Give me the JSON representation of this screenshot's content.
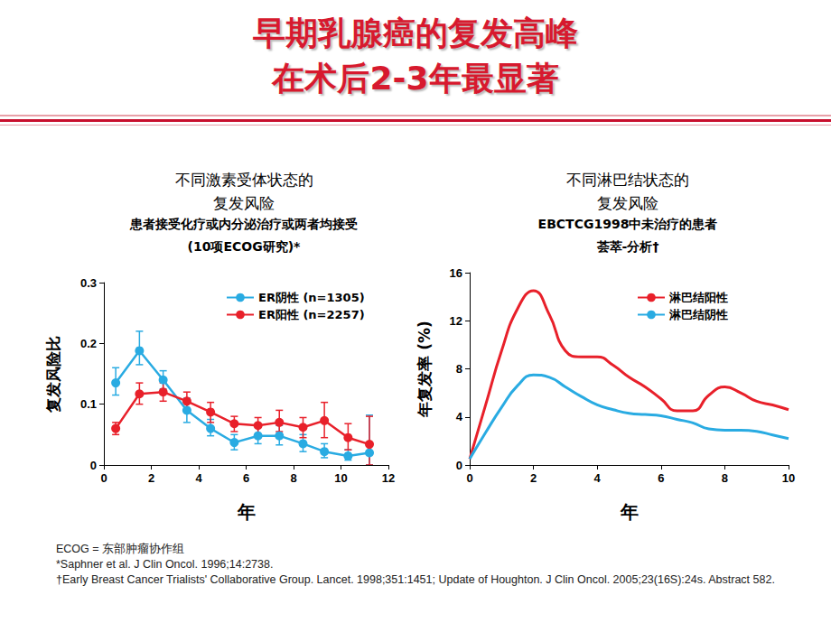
{
  "title": "早期乳腺癌的复发高峰\n在术后2-3年最显著",
  "chart_data": [
    {
      "type": "line",
      "title": "不同激素受体状态的\n复发风险",
      "subtitle": "患者接受化疗或内分泌治疗或两者均接受\n(10项ECOG研究)*",
      "x_label": "年",
      "y_label": "复发风险比",
      "xlim": [
        0,
        12
      ],
      "xticks": [
        0,
        2,
        4,
        6,
        8,
        10,
        12
      ],
      "ylim": [
        0,
        0.3
      ],
      "yticks": [
        0,
        0.1,
        0.2,
        0.3
      ],
      "grid": false,
      "legend": "upper right",
      "x": [
        0.5,
        1.5,
        2.5,
        3.5,
        4.5,
        5.5,
        6.5,
        7.4,
        8.4,
        9.3,
        10.3,
        11.2
      ],
      "series": [
        {
          "name": "ER阴性 (n=1305)",
          "color": "#29abe2",
          "marker": "circle",
          "values": [
            0.135,
            0.188,
            0.14,
            0.09,
            0.06,
            0.037,
            0.048,
            0.048,
            0.035,
            0.022,
            0.015,
            0.02
          ],
          "error": [
            [
              0.115,
              0.16
            ],
            [
              0.165,
              0.22
            ],
            [
              0.125,
              0.155
            ],
            [
              0.07,
              0.11
            ],
            [
              0.048,
              0.075
            ],
            [
              0.025,
              0.05
            ],
            [
              0.035,
              0.065
            ],
            [
              0.033,
              0.065
            ],
            [
              0.022,
              0.05
            ],
            [
              0.012,
              0.035
            ],
            [
              0.008,
              0.025
            ],
            [
              0.0,
              0.082
            ]
          ]
        },
        {
          "name": "ER阳性 (n=2257)",
          "color": "#e8202a",
          "marker": "circle",
          "values": [
            0.06,
            0.117,
            0.12,
            0.105,
            0.087,
            0.068,
            0.065,
            0.07,
            0.062,
            0.073,
            0.045,
            0.034
          ],
          "error": [
            [
              0.05,
              0.07
            ],
            [
              0.1,
              0.135
            ],
            [
              0.105,
              0.135
            ],
            [
              0.09,
              0.12
            ],
            [
              0.07,
              0.103
            ],
            [
              0.055,
              0.08
            ],
            [
              0.05,
              0.078
            ],
            [
              0.055,
              0.09
            ],
            [
              0.045,
              0.078
            ],
            [
              0.045,
              0.103
            ],
            [
              0.025,
              0.068
            ],
            [
              0.0,
              0.08
            ]
          ]
        }
      ]
    },
    {
      "type": "line",
      "title": "不同淋巴结状态的\n复发风险",
      "subtitle": "EBCTCG1998中未治疗的患者\n荟萃-分析†",
      "x_label": "年",
      "y_label": "年复发率 (%)",
      "xlim": [
        0,
        10
      ],
      "xticks": [
        0,
        2,
        4,
        6,
        8,
        10
      ],
      "ylim": [
        0,
        16
      ],
      "yticks": [
        0,
        4,
        8,
        12,
        16
      ],
      "grid": false,
      "legend": "upper right",
      "x": [
        0,
        0.5,
        1,
        1.5,
        2,
        2.5,
        3,
        3.5,
        4,
        4.5,
        5,
        5.5,
        6,
        6.5,
        7,
        7.5,
        8,
        8.5,
        9,
        9.5,
        10
      ],
      "series": [
        {
          "name": "淋巴结阳性",
          "color": "#e8202a",
          "marker": "none",
          "values": [
            0.5,
            5,
            9.5,
            13,
            14.5,
            12.5,
            9.5,
            9,
            9,
            8.3,
            7.3,
            6.5,
            5.5,
            4.5,
            4.5,
            5.8,
            6.5,
            6,
            5.3,
            5,
            4.6
          ]
        },
        {
          "name": "淋巴结阴性",
          "color": "#29abe2",
          "marker": "none",
          "values": [
            0.5,
            2.7,
            4.8,
            6.6,
            7.5,
            7.3,
            6.5,
            5.7,
            5,
            4.6,
            4.3,
            4.2,
            4.1,
            3.8,
            3.5,
            3,
            2.9,
            2.9,
            2.8,
            2.5,
            2.2
          ]
        }
      ]
    }
  ],
  "footnotes": [
    "ECOG = 东部肿瘤协作组",
    "*Saphner et al. J Clin Oncol. 1996;14:2738.",
    "†Early Breast Cancer Trialists' Collaborative Group. Lancet. 1998;351:1451; Update of Houghton. J Clin Oncol. 2005;23(16S):24s. Abstract 582."
  ]
}
